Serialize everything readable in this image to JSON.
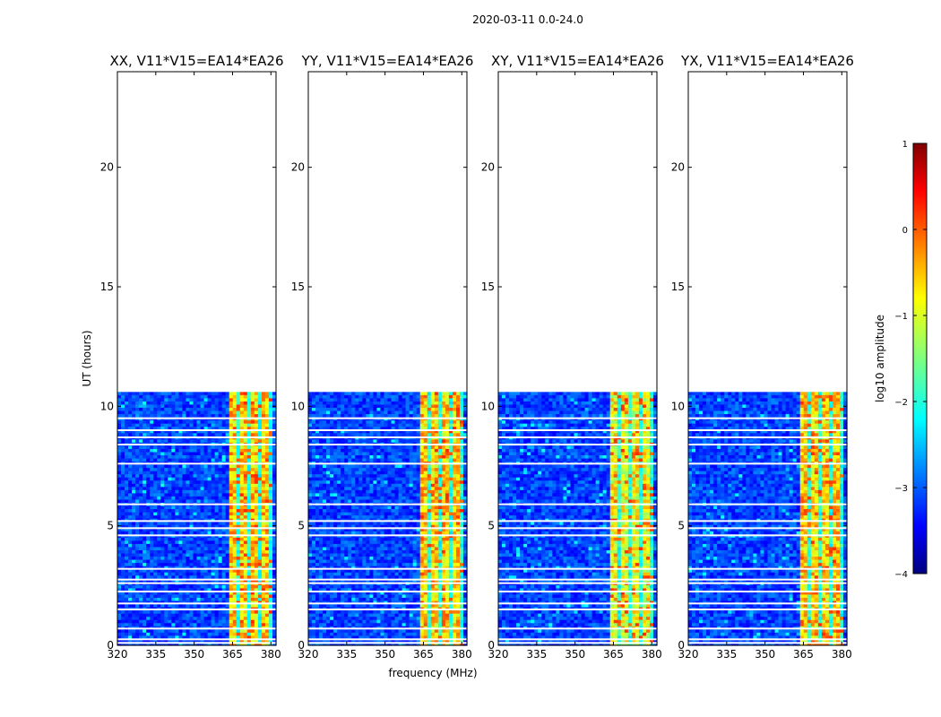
{
  "chart_data": {
    "type": "heatmap",
    "suptitle": "2020-03-11 0.0-24.0",
    "xlabel": "frequency (MHz)",
    "ylabel": "UT (hours)",
    "xlim": [
      320,
      382
    ],
    "ylim": [
      0,
      24
    ],
    "x_ticks": [
      320,
      335,
      350,
      365,
      380
    ],
    "y_ticks": [
      0,
      5,
      10,
      15,
      20
    ],
    "data_extent_hours": [
      0,
      10.6
    ],
    "rfi_band_mhz": [
      363.5,
      380
    ],
    "flagged_rows_hours": [
      0.1,
      0.25,
      0.7,
      1.5,
      1.75,
      2.25,
      2.6,
      2.75,
      3.2,
      4.6,
      4.9,
      5.2,
      5.9,
      7.6,
      8.4,
      8.7,
      9.0,
      9.5
    ],
    "colorbar": {
      "label": "log10 amplitude",
      "min": -4,
      "max": 1,
      "ticks": [
        -4,
        -3,
        -2,
        -1,
        0,
        1
      ],
      "tick_labels": [
        "−4",
        "−3",
        "−2",
        "−1",
        "0",
        "1"
      ],
      "colormap": "jet"
    },
    "panels": [
      {
        "title": "XX, V11*V15=EA14*EA26",
        "pol": "XX"
      },
      {
        "title": "YY, V11*V15=EA14*EA26",
        "pol": "YY"
      },
      {
        "title": "XY, V11*V15=EA14*EA26",
        "pol": "XY"
      },
      {
        "title": "YX, V11*V15=EA14*EA26",
        "pol": "YX"
      }
    ]
  }
}
